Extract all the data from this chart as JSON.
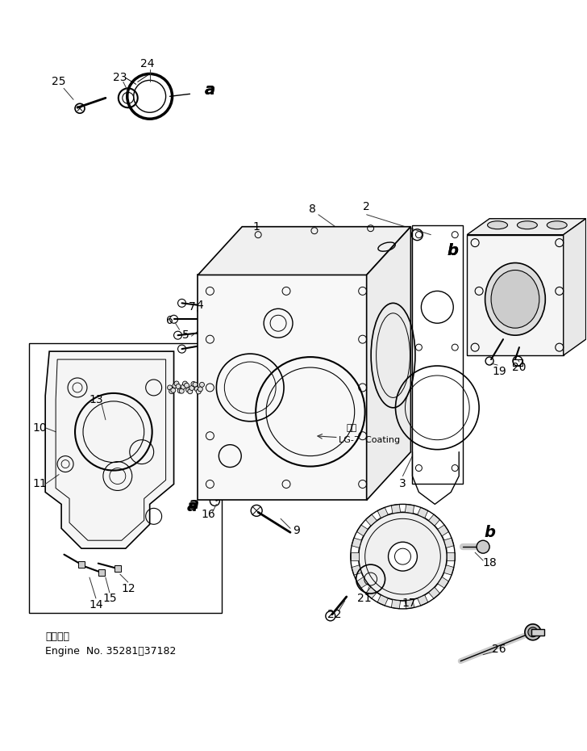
{
  "bg_color": "#ffffff",
  "line_color": "#000000",
  "figsize": [
    7.28,
    9.3
  ],
  "dpi": 100,
  "text_color": "#000000",
  "engine_note_text1": "適用号機",
  "engine_note_text2": "Engine  No. 35281～37182",
  "coating_text1": "塗布",
  "coating_text2": "LG-7  Coating"
}
